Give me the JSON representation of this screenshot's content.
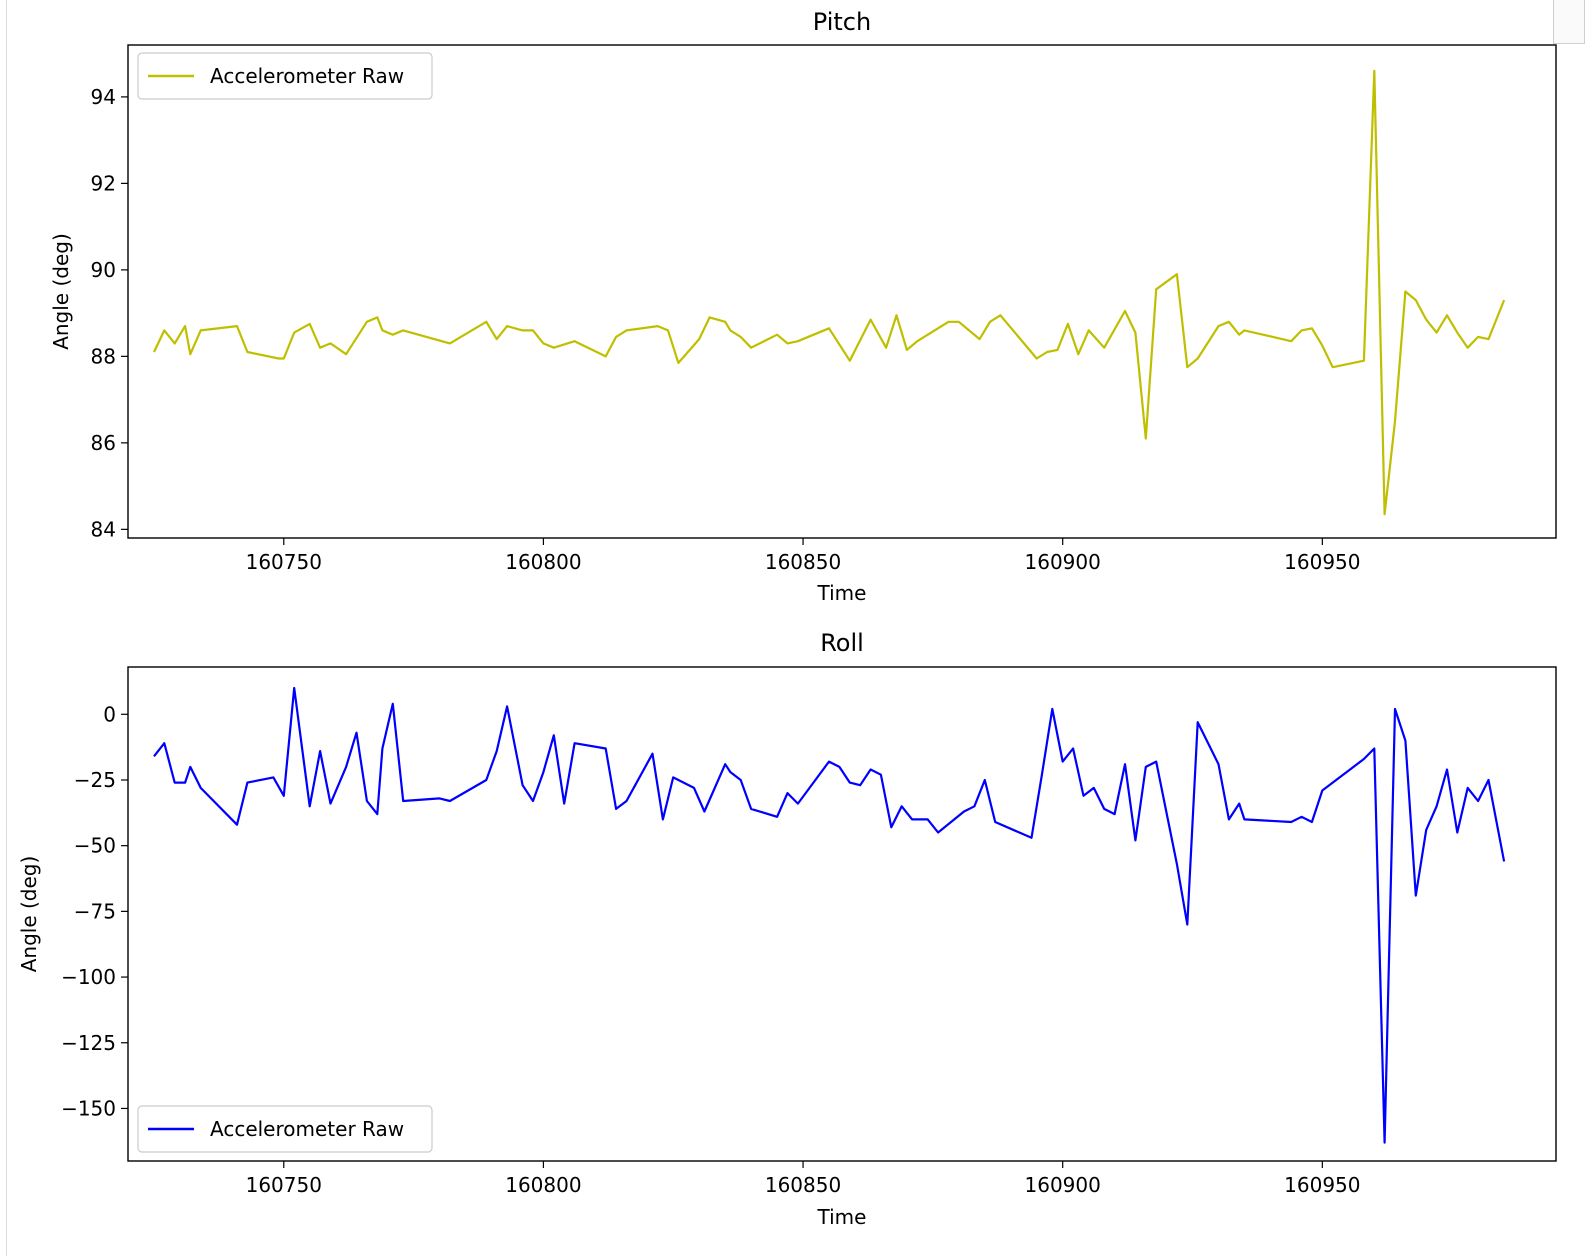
{
  "chart_data": [
    {
      "type": "line",
      "title": "Pitch",
      "xlabel": "Time",
      "ylabel": "Angle (deg)",
      "xlim": [
        160720,
        160995
      ],
      "ylim": [
        83.8,
        95.2
      ],
      "xticks": [
        160750,
        160800,
        160850,
        160900,
        160950
      ],
      "yticks": [
        84,
        86,
        88,
        90,
        92,
        94
      ],
      "legend_position": "upper left",
      "grid": false,
      "series": [
        {
          "name": "Accelerometer Raw",
          "color": "#bfbf00",
          "x": [
            160725,
            160727,
            160729,
            160731,
            160732,
            160734,
            160741,
            160743,
            160749,
            160750,
            160752,
            160755,
            160757,
            160759,
            160762,
            160766,
            160768,
            160769,
            160771,
            160773,
            160782,
            160789,
            160791,
            160793,
            160796,
            160798,
            160800,
            160802,
            160806,
            160812,
            160814,
            160816,
            160822,
            160824,
            160826,
            160830,
            160832,
            160835,
            160836,
            160838,
            160840,
            160845,
            160847,
            160849,
            160855,
            160859,
            160863,
            160866,
            160868,
            160870,
            160872,
            160878,
            160880,
            160884,
            160886,
            160888,
            160895,
            160897,
            160899,
            160901,
            160903,
            160905,
            160908,
            160912,
            160914,
            160916,
            160918,
            160922,
            160924,
            160926,
            160930,
            160932,
            160934,
            160935,
            160944,
            160946,
            160948,
            160950,
            160952,
            160958,
            160960,
            160962,
            160964,
            160966,
            160968,
            160970,
            160972,
            160974,
            160976,
            160978,
            160980,
            160982,
            160985
          ],
          "y": [
            88.1,
            88.6,
            88.3,
            88.7,
            88.05,
            88.6,
            88.7,
            88.1,
            87.95,
            87.95,
            88.55,
            88.75,
            88.2,
            88.3,
            88.05,
            88.8,
            88.9,
            88.6,
            88.5,
            88.6,
            88.3,
            88.8,
            88.4,
            88.7,
            88.6,
            88.6,
            88.3,
            88.2,
            88.35,
            88.0,
            88.45,
            88.6,
            88.7,
            88.6,
            87.85,
            88.4,
            88.9,
            88.8,
            88.6,
            88.45,
            88.2,
            88.5,
            88.3,
            88.35,
            88.65,
            87.9,
            88.85,
            88.2,
            88.95,
            88.15,
            88.35,
            88.8,
            88.8,
            88.4,
            88.8,
            88.95,
            87.95,
            88.1,
            88.15,
            88.75,
            88.05,
            88.6,
            88.2,
            89.05,
            88.55,
            86.1,
            89.55,
            89.9,
            87.75,
            87.95,
            88.7,
            88.8,
            88.5,
            88.6,
            88.35,
            88.6,
            88.65,
            88.25,
            87.75,
            87.9,
            94.6,
            84.35,
            86.5,
            89.5,
            89.3,
            88.85,
            88.55,
            88.95,
            88.55,
            88.2,
            88.45,
            88.4,
            89.3
          ]
        }
      ]
    },
    {
      "type": "line",
      "title": "Roll",
      "xlabel": "Time",
      "ylabel": "Angle (deg)",
      "xlim": [
        160720,
        160995
      ],
      "ylim": [
        -170,
        18
      ],
      "xticks": [
        160750,
        160800,
        160850,
        160900,
        160950
      ],
      "yticks": [
        0,
        -25,
        -50,
        -75,
        -100,
        -125,
        -150
      ],
      "ytick_labels": [
        "0",
        "−25",
        "−50",
        "−75",
        "−100",
        "−125",
        "−150"
      ],
      "legend_position": "lower left",
      "grid": false,
      "series": [
        {
          "name": "Accelerometer Raw",
          "color": "#0000ff",
          "x": [
            160725,
            160727,
            160729,
            160731,
            160732,
            160734,
            160741,
            160743,
            160748,
            160750,
            160752,
            160755,
            160757,
            160759,
            160762,
            160764,
            160766,
            160768,
            160769,
            160771,
            160773,
            160780,
            160782,
            160789,
            160791,
            160793,
            160796,
            160798,
            160800,
            160802,
            160804,
            160806,
            160812,
            160814,
            160816,
            160821,
            160823,
            160825,
            160827,
            160829,
            160831,
            160835,
            160836,
            160838,
            160840,
            160845,
            160847,
            160849,
            160855,
            160857,
            160859,
            160861,
            160863,
            160865,
            160867,
            160869,
            160871,
            160874,
            160876,
            160881,
            160883,
            160885,
            160887,
            160894,
            160896,
            160898,
            160900,
            160902,
            160904,
            160906,
            160908,
            160910,
            160912,
            160914,
            160916,
            160918,
            160922,
            160924,
            160926,
            160930,
            160932,
            160934,
            160935,
            160944,
            160946,
            160948,
            160950,
            160958,
            160960,
            160962,
            160964,
            160966,
            160968,
            160970,
            160972,
            160974,
            160976,
            160978,
            160980,
            160982,
            160985
          ],
          "y": [
            -16,
            -11,
            -26,
            -26,
            -20,
            -28,
            -42,
            -26,
            -24,
            -31,
            10,
            -35,
            -14,
            -34,
            -20,
            -7,
            -33,
            -38,
            -13,
            4,
            -33,
            -32,
            -33,
            -25,
            -14,
            3,
            -27,
            -33,
            -22,
            -8,
            -34,
            -11,
            -13,
            -36,
            -33,
            -15,
            -40,
            -24,
            -26,
            -28,
            -37,
            -19,
            -22,
            -25,
            -36,
            -39,
            -30,
            -34,
            -18,
            -20,
            -26,
            -27,
            -21,
            -23,
            -43,
            -35,
            -40,
            -40,
            -45,
            -37,
            -35,
            -25,
            -41,
            -47,
            -23,
            2,
            -18,
            -13,
            -31,
            -28,
            -36,
            -38,
            -19,
            -48,
            -20,
            -18,
            -57,
            -80,
            -3,
            -19,
            -40,
            -34,
            -40,
            -41,
            -39,
            -41,
            -29,
            -17,
            -13,
            -163,
            2,
            -10,
            -69,
            -44,
            -35,
            -21,
            -45,
            -28,
            -33,
            -25,
            -56
          ]
        }
      ]
    }
  ]
}
